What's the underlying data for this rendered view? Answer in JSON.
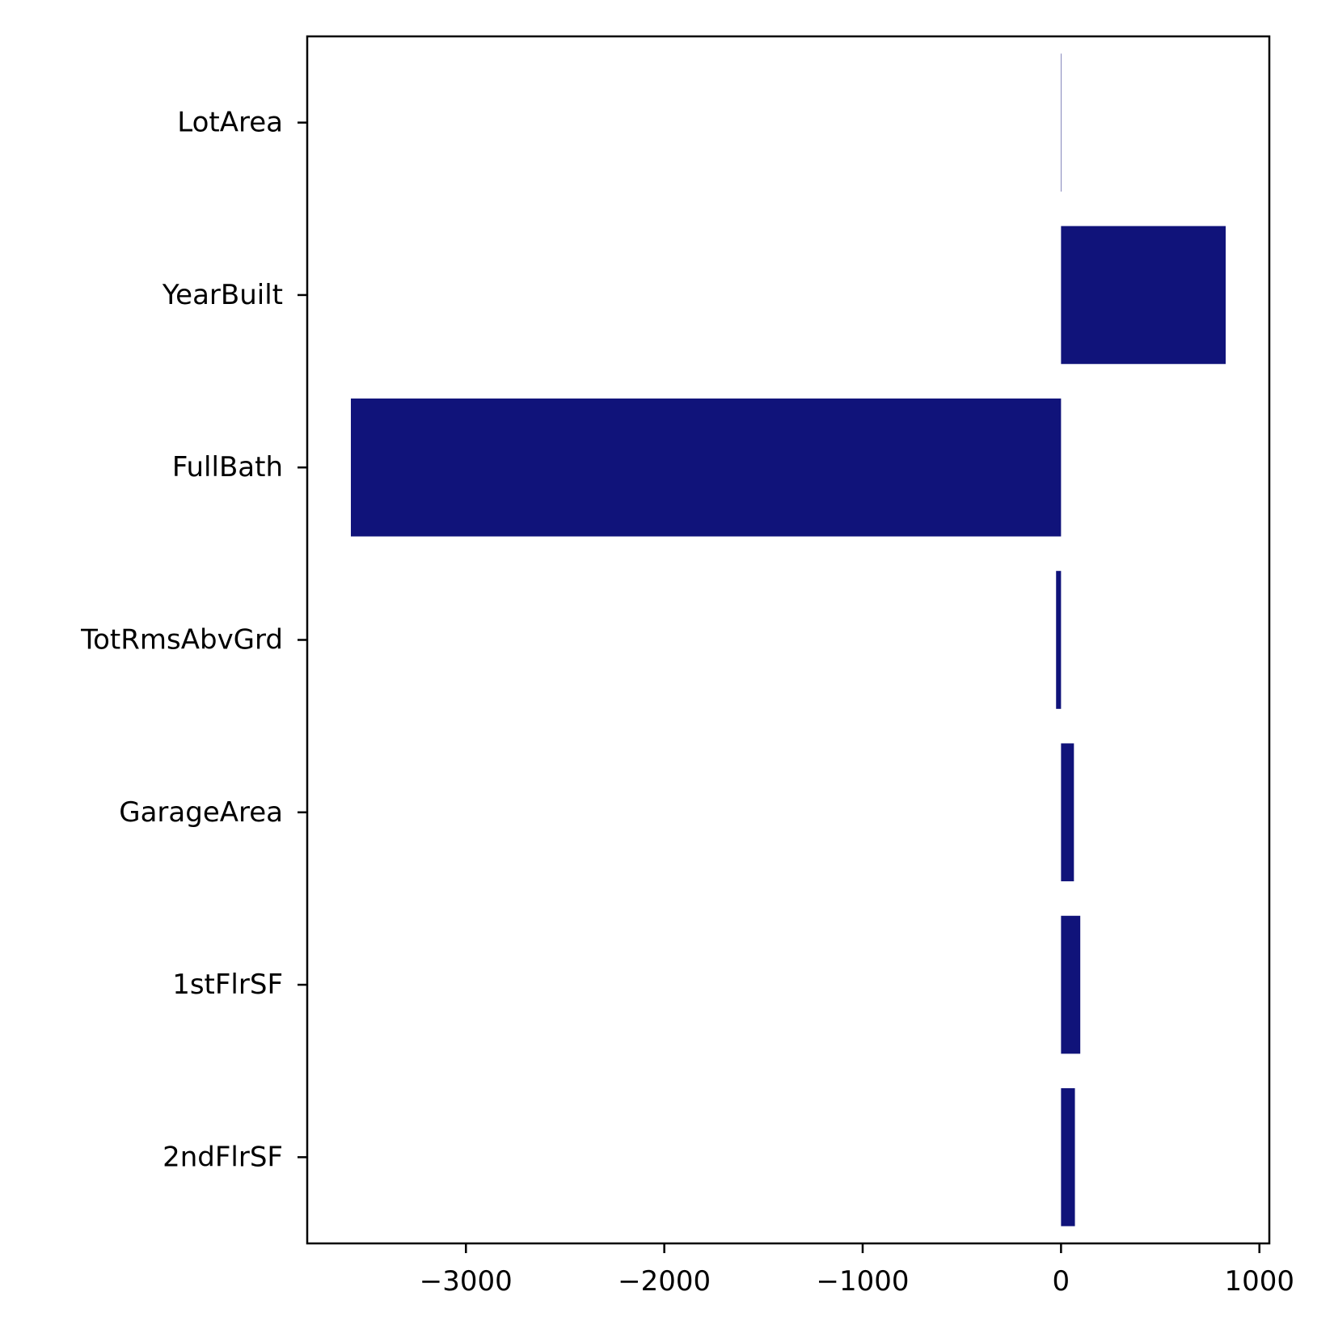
{
  "chart_data": {
    "type": "bar",
    "orientation": "horizontal",
    "categories": [
      "LotArea",
      "YearBuilt",
      "FullBath",
      "TotRmsAbvGrd",
      "GarageArea",
      "1stFlrSF",
      "2ndFlrSF"
    ],
    "values": [
      0.2,
      830,
      -3580,
      -25,
      65,
      97,
      70
    ],
    "xlim": [
      -3800,
      1050
    ],
    "xticks": [
      -3000,
      -2000,
      -1000,
      0,
      1000
    ],
    "xtick_labels": [
      "−3000",
      "−2000",
      "−1000",
      "0",
      "1000"
    ],
    "title": "",
    "xlabel": "",
    "ylabel": "",
    "grid": false,
    "bar_color": "#10137a"
  }
}
